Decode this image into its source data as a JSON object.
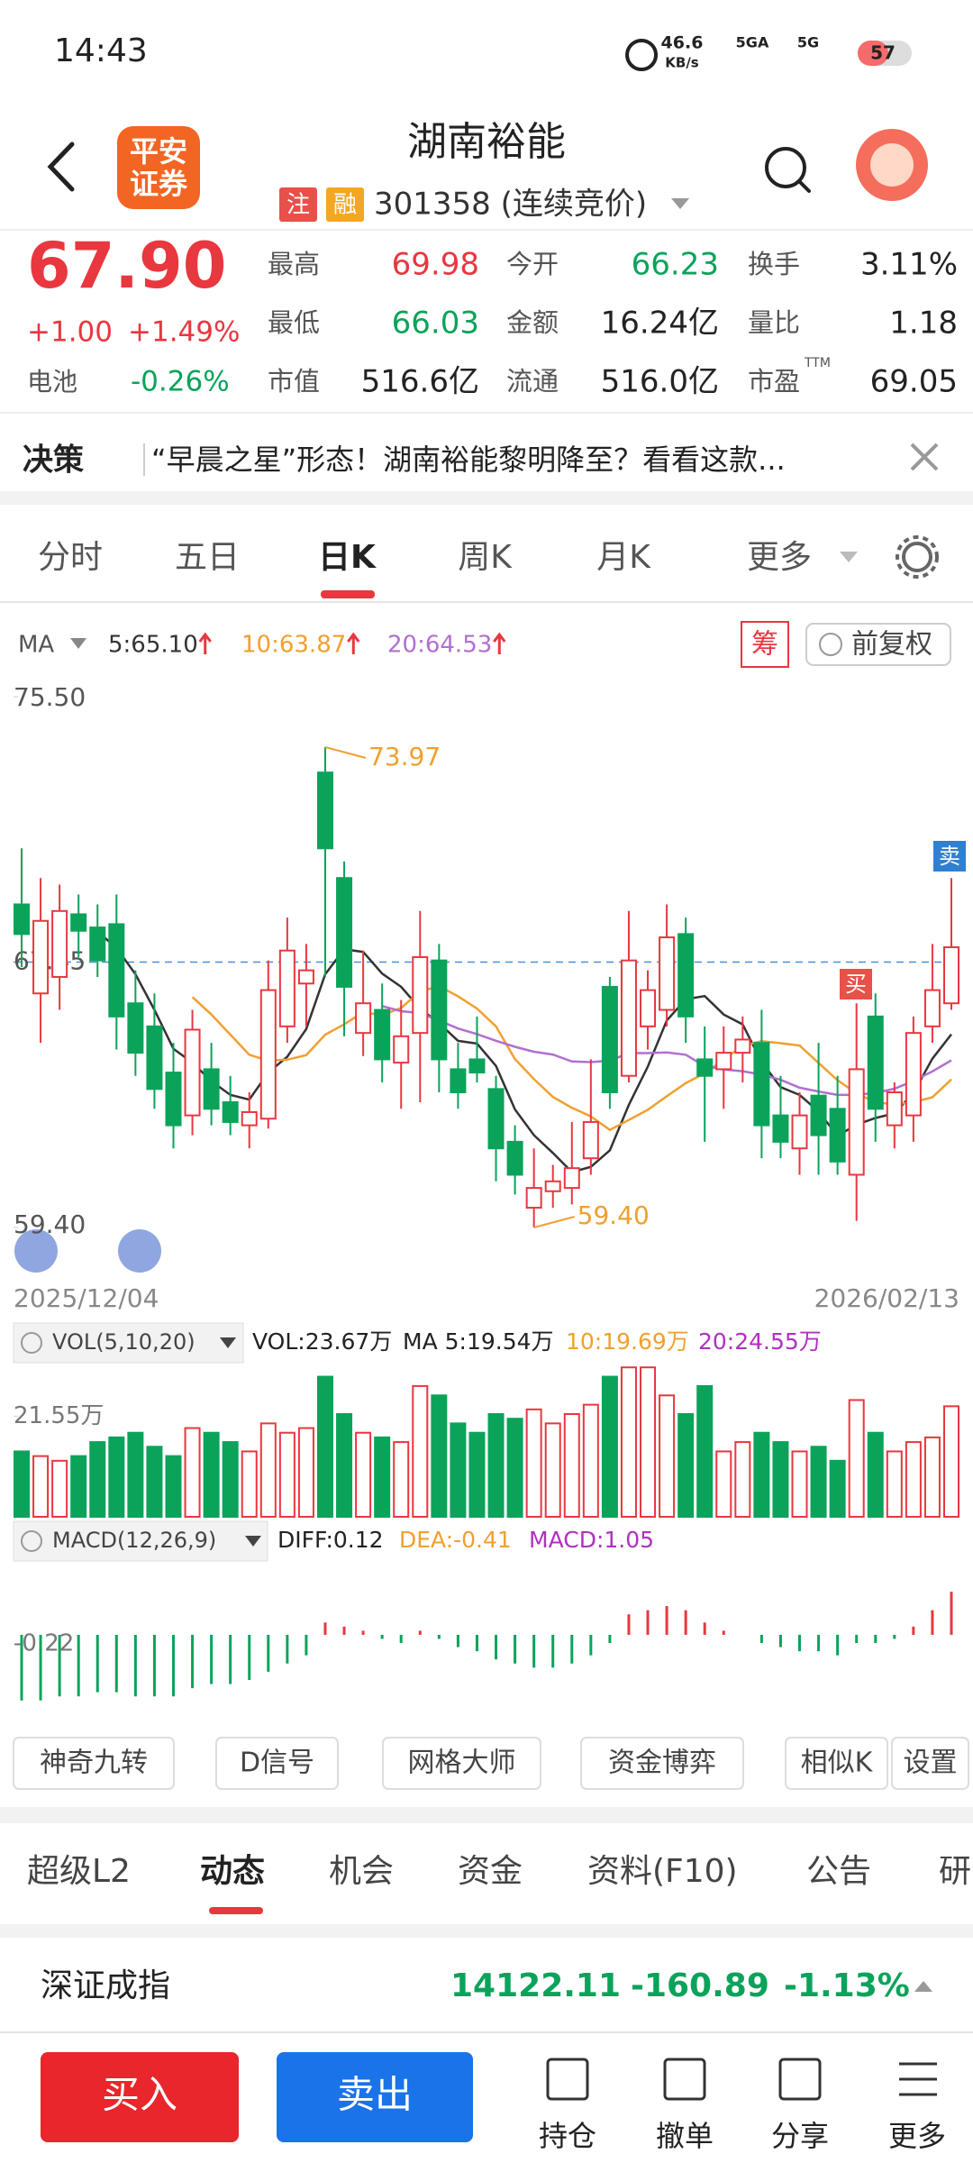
{
  "status": {
    "time": "14:43",
    "speed": "46.6",
    "speed_unit": "KB/s",
    "net1": "5GA",
    "net2": "5G",
    "battery": "57"
  },
  "header": {
    "logo": [
      "平安",
      "证券"
    ],
    "title": "湖南裕能",
    "badges": [
      "注",
      "融"
    ],
    "code": "301358 (连续竞价)"
  },
  "quote": {
    "price": "67.90",
    "change": "+1.00",
    "change_pct": "+1.49%",
    "sector": "电池",
    "sector_pct": "-0.26%",
    "fields": [
      [
        {
          "label": "最高",
          "value": "69.98",
          "tone": "up"
        },
        {
          "label": "今开",
          "value": "66.23",
          "tone": "down"
        },
        {
          "label": "换手",
          "value": "3.11%",
          "tone": "flat"
        }
      ],
      [
        {
          "label": "最低",
          "value": "66.03",
          "tone": "down"
        },
        {
          "label": "金额",
          "value": "16.24亿",
          "tone": "flat"
        },
        {
          "label": "量比",
          "value": "1.18",
          "tone": "flat"
        }
      ],
      [
        {
          "label": "市值",
          "value": "516.6亿",
          "tone": "flat"
        },
        {
          "label": "流通",
          "value": "516.0亿",
          "tone": "flat"
        },
        {
          "label": "市盈",
          "sup": "TTM",
          "value": "69.05",
          "tone": "flat"
        }
      ]
    ]
  },
  "news": {
    "tag": "决策",
    "text": "“早晨之星”形态！湖南裕能黎明降至？看看这款..."
  },
  "period_tabs": [
    "分时",
    "五日",
    "日K",
    "周K",
    "月K",
    "更多"
  ],
  "chart_data": {
    "type": "candlestick",
    "ma_label": "MA",
    "ma": [
      {
        "name": "5:65.10",
        "color": "#333333",
        "period": 5
      },
      {
        "name": "10:63.87",
        "color": "#f0a030",
        "period": 10
      },
      {
        "name": "20:64.53",
        "color": "#b070d0",
        "period": 20
      }
    ],
    "chip": "筹",
    "adjust": "前复权",
    "ylim": [
      59.4,
      75.5
    ],
    "yticks": [
      {
        "value": 75.5,
        "label": "75.50"
      },
      {
        "value": 67.45,
        "label": "67.45"
      },
      {
        "value": 59.4,
        "label": "59.40"
      }
    ],
    "up_color": "#e8373f",
    "down_color": "#0ba35a",
    "categories": [
      "2025/12/04",
      null,
      null,
      null,
      null,
      null,
      null,
      null,
      null,
      null,
      null,
      null,
      null,
      null,
      null,
      null,
      null,
      null,
      null,
      null,
      null,
      null,
      null,
      null,
      null,
      null,
      null,
      null,
      null,
      null,
      null,
      null,
      null,
      null,
      null,
      null,
      null,
      null,
      null,
      null,
      null,
      null,
      null,
      null,
      null,
      null,
      null,
      null,
      null,
      "2026/02/13"
    ],
    "ohlc": [
      [
        69.2,
        70.9,
        67.3,
        68.3
      ],
      [
        66.5,
        70.0,
        65.0,
        68.7
      ],
      [
        67.0,
        69.8,
        66.0,
        69.0
      ],
      [
        68.9,
        69.5,
        67.6,
        68.4
      ],
      [
        68.5,
        69.2,
        67.0,
        67.5
      ],
      [
        68.6,
        69.5,
        64.8,
        65.8
      ],
      [
        66.2,
        67.2,
        64.0,
        64.7
      ],
      [
        65.5,
        66.5,
        63.0,
        63.6
      ],
      [
        64.1,
        65.0,
        61.8,
        62.5
      ],
      [
        62.8,
        66.0,
        62.2,
        65.4
      ],
      [
        64.2,
        65.0,
        62.5,
        63.0
      ],
      [
        63.2,
        64.0,
        62.2,
        62.6
      ],
      [
        62.5,
        63.5,
        61.8,
        62.9
      ],
      [
        62.7,
        67.5,
        62.4,
        66.6
      ],
      [
        65.5,
        68.8,
        65.0,
        67.8
      ],
      [
        66.8,
        68.0,
        65.5,
        67.2
      ],
      [
        73.2,
        73.97,
        67.0,
        70.9
      ],
      [
        70.0,
        70.5,
        65.2,
        66.7
      ],
      [
        65.3,
        67.8,
        64.6,
        66.2
      ],
      [
        66.0,
        66.8,
        63.8,
        64.5
      ],
      [
        64.4,
        66.3,
        63.0,
        65.2
      ],
      [
        65.3,
        69.0,
        63.2,
        67.6
      ],
      [
        67.5,
        68.0,
        63.5,
        64.5
      ],
      [
        64.2,
        65.0,
        63.0,
        63.5
      ],
      [
        64.5,
        65.8,
        63.8,
        64.1
      ],
      [
        63.6,
        64.0,
        60.8,
        61.8
      ],
      [
        62.0,
        62.5,
        60.4,
        61.0
      ],
      [
        60.0,
        61.8,
        59.4,
        60.6
      ],
      [
        60.5,
        61.3,
        60.0,
        60.8
      ],
      [
        60.6,
        62.6,
        60.1,
        61.2
      ],
      [
        61.5,
        64.5,
        61.0,
        62.6
      ],
      [
        66.7,
        67.0,
        63.0,
        63.5
      ],
      [
        64.0,
        69.0,
        63.8,
        67.5
      ],
      [
        65.5,
        67.2,
        64.8,
        66.6
      ],
      [
        66.0,
        69.2,
        65.5,
        68.2
      ],
      [
        68.3,
        68.8,
        65.0,
        65.8
      ],
      [
        64.5,
        65.5,
        62.0,
        64.0
      ],
      [
        64.2,
        65.5,
        63.0,
        64.7
      ],
      [
        64.7,
        65.8,
        63.8,
        65.1
      ],
      [
        65.0,
        66.0,
        61.5,
        62.5
      ],
      [
        62.8,
        64.0,
        61.5,
        62.0
      ],
      [
        61.8,
        63.5,
        61.0,
        62.8
      ],
      [
        63.4,
        65.0,
        61.0,
        62.2
      ],
      [
        63.0,
        64.0,
        61.0,
        61.4
      ],
      [
        61.0,
        66.2,
        59.6,
        64.2
      ],
      [
        65.8,
        66.5,
        62.0,
        63.0
      ],
      [
        62.5,
        63.8,
        61.8,
        63.5
      ],
      [
        62.8,
        65.8,
        62.0,
        65.3
      ],
      [
        65.5,
        68.0,
        65.0,
        66.6
      ],
      [
        66.2,
        70.0,
        66.0,
        67.9
      ]
    ],
    "high_label": "73.97",
    "low_label": "59.40",
    "buy_mark": "买",
    "sell_mark": "卖"
  },
  "volume": {
    "title": "VOL(5,10,20)",
    "labels": [
      {
        "text": "VOL:23.67万",
        "color": "#222222"
      },
      {
        "text": "MA 5:19.54万",
        "color": "#222222"
      },
      {
        "text": "10:19.69万",
        "color": "#f0a030"
      },
      {
        "text": "20:24.55万",
        "color": "#b030c0"
      }
    ],
    "values": [
      14,
      13,
      12,
      13,
      16,
      17,
      18,
      15,
      13,
      19,
      18,
      16,
      14,
      20,
      18,
      19,
      30,
      22,
      18,
      17,
      16,
      28,
      26,
      20,
      18,
      22,
      21,
      23,
      20,
      22,
      24,
      30,
      32,
      32,
      26,
      22,
      28,
      14,
      16,
      18,
      16,
      14,
      15,
      12,
      25,
      18,
      14,
      16,
      17,
      23.67
    ],
    "ylim": [
      0,
      33
    ],
    "yticks": [
      {
        "value": 21.55,
        "label": "21.55万"
      }
    ]
  },
  "macd": {
    "title": "MACD(12,26,9)",
    "labels": [
      {
        "text": "DIFF:0.12",
        "color": "#222222"
      },
      {
        "text": "DEA:-0.41",
        "color": "#f0a030"
      },
      {
        "text": "MACD:1.05",
        "color": "#b030c0"
      }
    ],
    "values": [
      -1.6,
      -1.6,
      -1.5,
      -1.5,
      -1.4,
      -1.4,
      -1.5,
      -1.5,
      -1.5,
      -1.3,
      -1.2,
      -1.2,
      -1.1,
      -0.9,
      -0.7,
      -0.5,
      0.3,
      0.2,
      0.1,
      -0.1,
      -0.2,
      0.1,
      -0.1,
      -0.3,
      -0.4,
      -0.6,
      -0.7,
      -0.8,
      -0.8,
      -0.7,
      -0.5,
      -0.2,
      0.5,
      0.6,
      0.7,
      0.6,
      0.3,
      0.1,
      0.0,
      -0.2,
      -0.3,
      -0.4,
      -0.4,
      -0.5,
      -0.2,
      -0.2,
      -0.1,
      0.2,
      0.6,
      1.05
    ],
    "ylim": [
      -2,
      1.8
    ],
    "yticks": [
      {
        "value": -0.22,
        "label": "-0.22"
      }
    ]
  },
  "tools": [
    "神奇九转",
    "D信号",
    "网格大师",
    "资金博弈",
    "相似K",
    "设置"
  ],
  "info_tabs": [
    "超级L2",
    "动态",
    "机会",
    "资金",
    "资料(F10)",
    "公告",
    "研"
  ],
  "index": {
    "name": "深证成指",
    "value": "14122.11",
    "change": "-160.89",
    "pct": "-1.13%"
  },
  "bottom": {
    "buy": "买入",
    "sell": "卖出",
    "actions": [
      "持仓",
      "撤单",
      "分享",
      "更多"
    ]
  }
}
